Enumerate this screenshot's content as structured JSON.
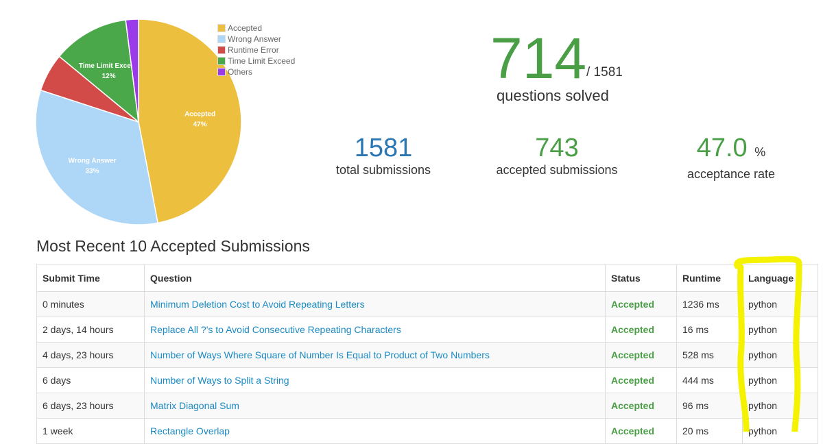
{
  "chart_data": {
    "type": "pie",
    "slices": [
      {
        "label": "Accepted",
        "value": 47,
        "color": "#ecc03e",
        "show": "47%"
      },
      {
        "label": "Wrong Answer",
        "value": 33,
        "color": "#aed6f6",
        "show": "33%"
      },
      {
        "label": "Runtime Error",
        "value": 6,
        "color": "#d24b48",
        "show": ""
      },
      {
        "label": "Time Limit Exceed",
        "value": 12,
        "color": "#4aa84a",
        "show": "12%"
      },
      {
        "label": "Others",
        "value": 2,
        "color": "#9b3ae8",
        "show": ""
      }
    ],
    "legend": "top-right"
  },
  "summary": {
    "solved": "714",
    "total_questions": "/ 1581",
    "solved_label": "questions solved",
    "total_submissions": "1581",
    "total_submissions_label": "total submissions",
    "accepted_submissions": "743",
    "accepted_submissions_label": "accepted submissions",
    "acceptance_rate": "47.0",
    "acceptance_unit": "%",
    "acceptance_label": "acceptance rate"
  },
  "table": {
    "title": "Most Recent 10 Accepted Submissions",
    "headers": [
      "Submit Time",
      "Question",
      "Status",
      "Runtime",
      "Language"
    ],
    "rows": [
      [
        "0 minutes",
        "Minimum Deletion Cost to Avoid Repeating Letters",
        "Accepted",
        "1236 ms",
        "python"
      ],
      [
        "2 days, 14 hours",
        "Replace All ?'s to Avoid Consecutive Repeating Characters",
        "Accepted",
        "16 ms",
        "python"
      ],
      [
        "4 days, 23 hours",
        "Number of Ways Where Square of Number Is Equal to Product of Two Numbers",
        "Accepted",
        "528 ms",
        "python"
      ],
      [
        "6 days",
        "Number of Ways to Split a String",
        "Accepted",
        "444 ms",
        "python"
      ],
      [
        "6 days, 23 hours",
        "Matrix Diagonal Sum",
        "Accepted",
        "96 ms",
        "python"
      ],
      [
        "1 week",
        "Rectangle Overlap",
        "Accepted",
        "20 ms",
        "python"
      ]
    ]
  }
}
